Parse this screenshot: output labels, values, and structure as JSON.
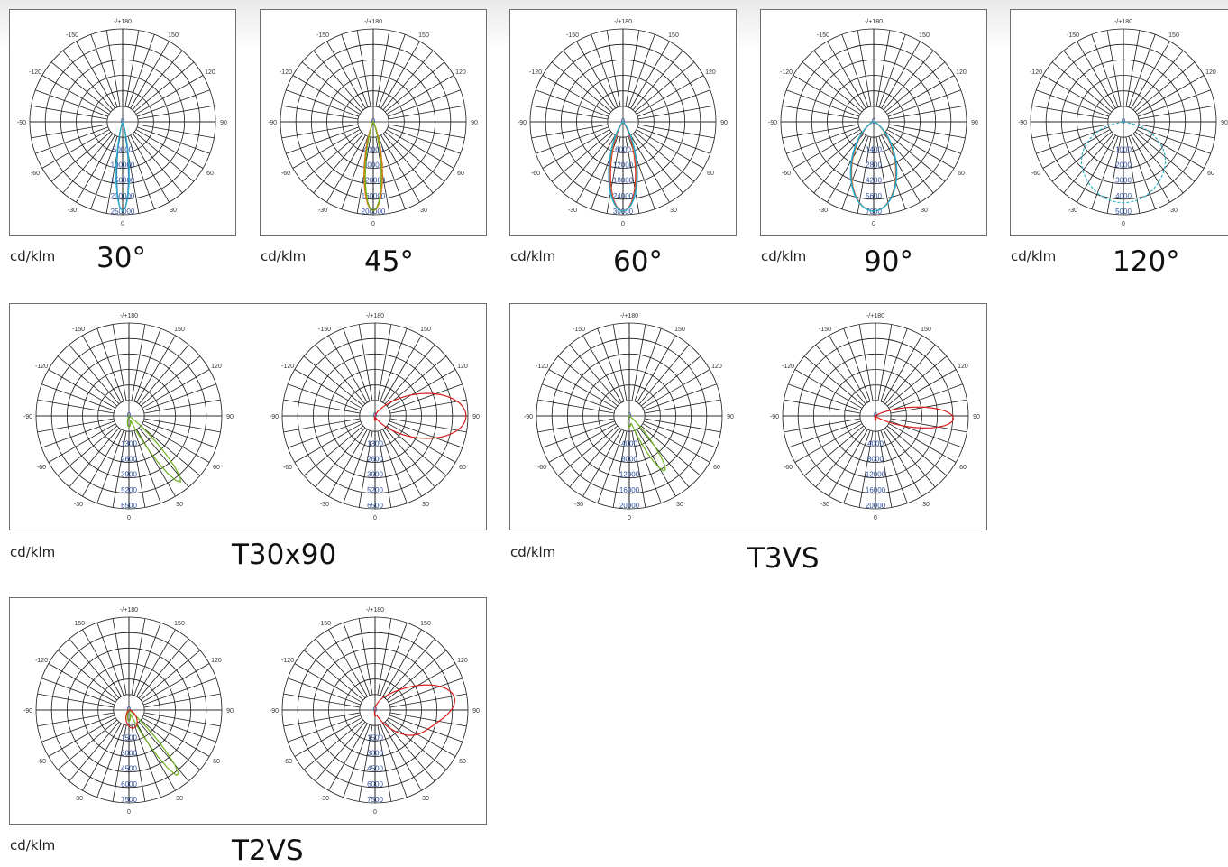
{
  "colors": {
    "grid": "#1a1a1a",
    "tick": "#2e4f9f",
    "red": "#d81b1b",
    "orange": "#e07b18",
    "green": "#6fb21e",
    "olive": "#a9a816",
    "blue": "#2f78c8",
    "cyan": "#2fb3c7"
  },
  "angle_labels": {
    "top": "-/+180",
    "left_top": "-150",
    "right_top": "150",
    "left_mid_top": "-120",
    "right_mid_top": "120",
    "left": "-90",
    "right": "90",
    "left_mid_bot": "-60",
    "right_mid_bot": "60",
    "left_bot": "-30",
    "right_bot": "30",
    "bottom": "0"
  },
  "charts": [
    {
      "unit": "cd/klm",
      "name": "30°"
    },
    {
      "unit": "cd/klm",
      "name": "45°"
    },
    {
      "unit": "cd/klm",
      "name": "60°"
    },
    {
      "unit": "cd/klm",
      "name": "90°"
    },
    {
      "unit": "cd/klm",
      "name": "120°"
    },
    {
      "unit": "cd/klm",
      "name": "T30x90"
    },
    {
      "unit": "cd/klm",
      "name": "T3VS"
    },
    {
      "unit": "cd/klm",
      "name": "T2VS"
    }
  ],
  "chart_data": [
    {
      "type": "polar",
      "beam": "30°",
      "unit": "cd/klm",
      "radial_ticks": [
        "0",
        "50000",
        "100000",
        "150000",
        "200000",
        "250000"
      ],
      "radial_max": 250000,
      "series": [
        {
          "color": "#2f78c8",
          "profile": "spot",
          "width_deg": 9
        },
        {
          "color": "#2fb3c7",
          "profile": "spot",
          "width_deg": 10
        }
      ]
    },
    {
      "type": "polar",
      "beam": "45°",
      "unit": "cd/klm",
      "radial_ticks": [
        "0",
        "40000",
        "80000",
        "120000",
        "160000",
        "200000"
      ],
      "radial_max": 200000,
      "series": [
        {
          "color": "#a9a816",
          "profile": "spot",
          "width_deg": 13
        },
        {
          "color": "#e07b18",
          "profile": "spot",
          "width_deg": 14
        },
        {
          "color": "#6fb21e",
          "profile": "spot",
          "width_deg": 12
        }
      ]
    },
    {
      "type": "polar",
      "beam": "60°",
      "unit": "cd/klm",
      "radial_ticks": [
        "0",
        "6000",
        "12000",
        "18000",
        "24000",
        "30000"
      ],
      "radial_max": 30000,
      "series": [
        {
          "color": "#d81b1b",
          "profile": "spot",
          "width_deg": 19
        },
        {
          "color": "#e07b18",
          "profile": "spot",
          "width_deg": 20
        },
        {
          "color": "#2f78c8",
          "profile": "spot",
          "width_deg": 21
        },
        {
          "color": "#2fb3c7",
          "profile": "spot",
          "width_deg": 22
        }
      ]
    },
    {
      "type": "polar",
      "beam": "90°",
      "unit": "cd/klm",
      "radial_ticks": [
        "0",
        "1400",
        "2800",
        "4200",
        "5600",
        "7000"
      ],
      "radial_max": 7000,
      "series": [
        {
          "color": "#e07b18",
          "profile": "spot",
          "width_deg": 34
        },
        {
          "color": "#2f78c8",
          "profile": "spot",
          "width_deg": 35
        },
        {
          "color": "#2fb3c7",
          "profile": "spot",
          "width_deg": 36
        }
      ]
    },
    {
      "type": "polar",
      "beam": "120°",
      "unit": "cd/klm",
      "radial_ticks": [
        "0",
        "1000",
        "2000",
        "3000",
        "4000",
        "5000"
      ],
      "radial_max": 5000,
      "series": [
        {
          "color": "#2fb3c7",
          "profile": "wide",
          "dash": true
        }
      ]
    },
    {
      "type": "polar_pair",
      "beam": "T30x90",
      "unit": "cd/klm",
      "radial_ticks": [
        "0",
        "1300",
        "2600",
        "3900",
        "5200",
        "6500"
      ],
      "radial_max": 6500,
      "left": [
        {
          "color": "#6fb21e",
          "profile": "side",
          "peak_deg": 38,
          "r": 0.9,
          "width_deg": 9
        }
      ],
      "right": [
        {
          "color": "#d81b1b",
          "profile": "lateral",
          "peak_deg": 90,
          "r": 0.98,
          "width_deg": 34
        }
      ]
    },
    {
      "type": "polar_pair",
      "beam": "T3VS",
      "unit": "cd/klm",
      "radial_ticks": [
        "0",
        "4000",
        "8000",
        "12000",
        "16000",
        "20000"
      ],
      "radial_max": 20000,
      "left": [
        {
          "color": "#6fb21e",
          "profile": "side",
          "peak_deg": 33,
          "r": 0.7,
          "width_deg": 10
        }
      ],
      "right": [
        {
          "color": "#d81b1b",
          "profile": "lateral",
          "peak_deg": 88,
          "r": 0.84,
          "width_deg": 18
        }
      ]
    },
    {
      "type": "polar_pair",
      "beam": "T2VS",
      "unit": "cd/klm",
      "radial_ticks": [
        "0",
        "1500",
        "3000",
        "4500",
        "6000",
        "7500"
      ],
      "radial_max": 7500,
      "left": [
        {
          "color": "#6fb21e",
          "profile": "side",
          "peak_deg": 37,
          "r": 0.88,
          "width_deg": 8
        },
        {
          "color": "#d81b1b",
          "profile": "small",
          "r": 0.2
        }
      ],
      "right": [
        {
          "color": "#d81b1b",
          "profile": "wavy",
          "peak_deg": 90,
          "r": 0.82,
          "width_deg": 45
        }
      ]
    }
  ]
}
